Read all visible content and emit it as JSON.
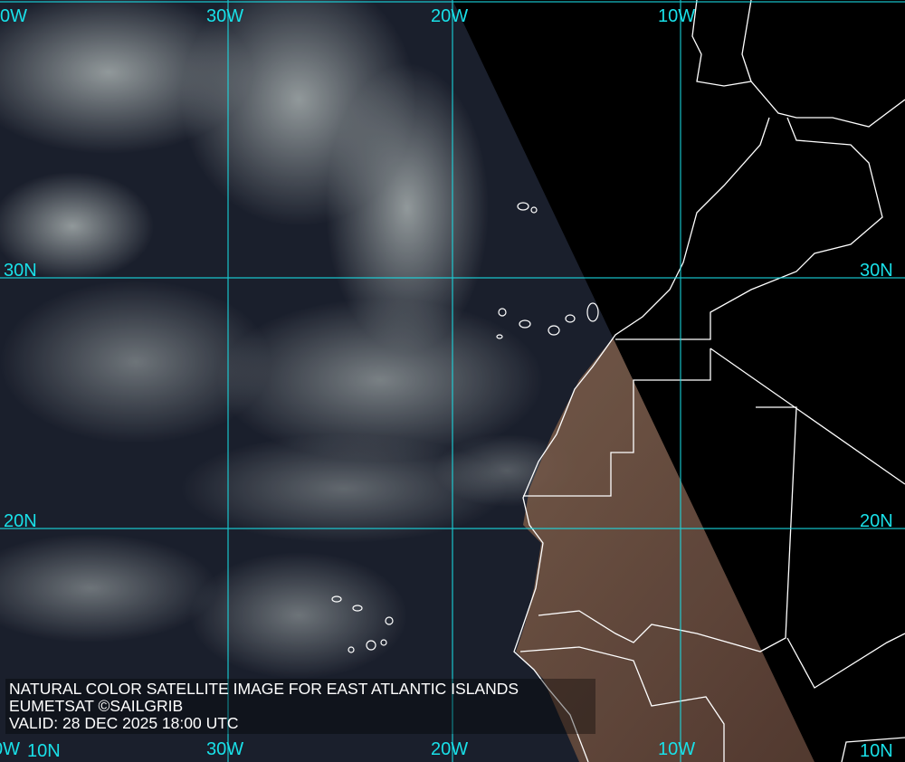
{
  "caption": {
    "title": "NATURAL COLOR SATELLITE IMAGE FOR EAST ATLANTIC ISLANDS",
    "source": "EUMETSAT ©SAILGRIB",
    "valid": "VALID:  28 DEC 2025 18:00 UTC"
  },
  "grid": {
    "color": "#19e0e8",
    "top_labels": [
      "0W",
      "30W",
      "20W",
      "10W"
    ],
    "bottom_labels": [
      "0W",
      "30W",
      "20W",
      "10W"
    ],
    "left_labels": [
      "30N",
      "20N",
      "10N"
    ],
    "right_labels": [
      "30N",
      "20N",
      "10N"
    ]
  },
  "colors": {
    "ocean": "#1a2233",
    "land": "#6b4a3a",
    "night": "#000000",
    "coastline": "#ffffff"
  }
}
